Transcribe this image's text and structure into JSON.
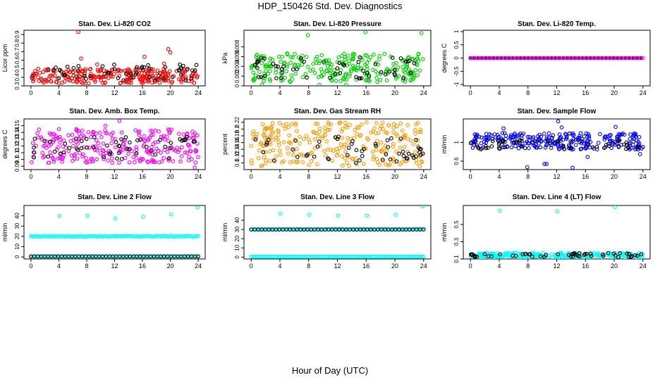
{
  "title": "HDP_150426  Std. Dev. Diagnostics",
  "xlabel": "Hour of Day (UTC)",
  "chart_data": [
    {
      "type": "scatter",
      "title": "Stan. Dev. Li-820 CO2",
      "ylabel": "Licor ppm",
      "xlim": [
        -1,
        25
      ],
      "ylim": [
        0.3,
        0.95
      ],
      "x_ticks": [
        0,
        4,
        8,
        12,
        16,
        20,
        24
      ],
      "y_ticks": [
        0.3,
        0.4,
        0.5,
        0.6,
        0.7,
        0.8,
        0.9
      ],
      "color": "#ff0000",
      "series_data": {
        "band": [
          0.33,
          0.5
        ],
        "outliers": [
          [
            6.8,
            0.93
          ],
          [
            7.2,
            0.62
          ],
          [
            9.5,
            0.55
          ],
          [
            16.3,
            0.64
          ],
          [
            19.1,
            0.56
          ],
          [
            19.7,
            0.73
          ],
          [
            20.0,
            0.69
          ]
        ],
        "black": [
          0.36,
          0.55
        ]
      }
    },
    {
      "type": "scatter",
      "title": "Stan. Dev. Li-820 Pressure",
      "ylabel": "kPa",
      "xlim": [
        -1,
        25
      ],
      "ylim": [
        0.0,
        0.0114
      ],
      "x_ticks": [
        0,
        4,
        8,
        12,
        16,
        20,
        24
      ],
      "y_ticks": [
        0.0,
        0.002,
        0.004,
        0.006,
        0.008
      ],
      "color": "#00cc00",
      "series_data": {
        "band": [
          0.0008,
          0.0068
        ],
        "outliers": [
          [
            7.9,
            0.0104
          ],
          [
            15.9,
            0.011
          ],
          [
            23.7,
            0.0108
          ],
          [
            1.5,
            0.0002
          ],
          [
            9.5,
            0.0002
          ],
          [
            13.2,
            0.0002
          ]
        ],
        "black": [
          0.0015,
          0.006
        ]
      }
    },
    {
      "type": "scatter",
      "title": "Stan. Dev. Li-820 Temp.",
      "ylabel": "degrees C",
      "xlim": [
        -1,
        25
      ],
      "ylim": [
        -1.05,
        1.05
      ],
      "x_ticks": [
        0,
        4,
        8,
        12,
        16,
        20,
        24
      ],
      "y_ticks": [
        -1.0,
        -0.5,
        0.0,
        0.5,
        1.0
      ],
      "color": "#ff00ff",
      "series_data": {
        "constant": 0.0
      }
    },
    {
      "type": "scatter",
      "title": "Stan. Dev. Amb. Box Temp.",
      "ylabel": "degrees C",
      "xlim": [
        -1,
        25
      ],
      "ylim": [
        0.085,
        0.16
      ],
      "x_ticks": [
        0,
        4,
        8,
        12,
        16,
        20,
        24
      ],
      "y_ticks": [
        0.09,
        0.1,
        0.11,
        0.12,
        0.13,
        0.14,
        0.15
      ],
      "color": "#ff00ff",
      "series_data": {
        "band": [
          0.095,
          0.145
        ],
        "outliers": [
          [
            10.7,
            0.15
          ],
          [
            12.7,
            0.157
          ],
          [
            23.5,
            0.088
          ]
        ],
        "black": [
          0.1,
          0.135
        ]
      }
    },
    {
      "type": "scatter",
      "title": "Stan. Dev. Gas Stream RH",
      "ylabel": "percent",
      "xlim": [
        -1,
        25
      ],
      "ylim": [
        0.08,
        0.23
      ],
      "x_ticks": [
        0,
        4,
        8,
        12,
        16,
        20,
        24
      ],
      "y_ticks": [
        0.1,
        0.12,
        0.14,
        0.16,
        0.18,
        0.2,
        0.22
      ],
      "color": "#ff9900",
      "series_data": {
        "band": [
          0.09,
          0.22
        ],
        "black": [
          0.1,
          0.18
        ]
      }
    },
    {
      "type": "scatter",
      "title": "Stan. Dev. Sample Flow",
      "ylabel": "ml/min",
      "xlim": [
        -1,
        25
      ],
      "ylim": [
        0.42,
        1.5
      ],
      "x_ticks": [
        0,
        4,
        8,
        12,
        16,
        20,
        24
      ],
      "y_ticks": [
        0.6,
        1.0
      ],
      "color": "#0000ff",
      "series_data": {
        "band": [
          0.85,
          1.2
        ],
        "outliers": [
          [
            4.6,
            1.3
          ],
          [
            7.9,
            0.47
          ],
          [
            10.3,
            0.54
          ],
          [
            10.6,
            0.54
          ],
          [
            12.2,
            1.45
          ],
          [
            12.7,
            1.32
          ],
          [
            14.2,
            0.46
          ],
          [
            16.3,
            0.69
          ],
          [
            20.2,
            1.33
          ],
          [
            23.6,
            0.75
          ]
        ],
        "black": [
          0.85,
          1.05
        ]
      }
    },
    {
      "type": "scatter",
      "title": "Stan. Dev. Line 2 Flow",
      "ylabel": "ml/min",
      "xlim": [
        -1,
        25
      ],
      "ylim": [
        -2,
        50
      ],
      "x_ticks": [
        0,
        4,
        8,
        12,
        16,
        20,
        24
      ],
      "y_ticks": [
        0,
        10,
        20,
        30,
        40
      ],
      "color": "#00ffff",
      "series_data": {
        "line_main": 20,
        "line_low": 0.5,
        "outliers": [
          [
            4.1,
            40
          ],
          [
            8.1,
            40
          ],
          [
            12.1,
            37.5
          ],
          [
            16.1,
            39
          ],
          [
            20.1,
            41.5
          ],
          [
            23.9,
            48
          ]
        ]
      }
    },
    {
      "type": "scatter",
      "title": "Stan. Dev. Line 3 Flow",
      "ylabel": "ml/min",
      "xlim": [
        -1,
        25
      ],
      "ylim": [
        -2,
        56
      ],
      "x_ticks": [
        0,
        4,
        8,
        12,
        16,
        20,
        24
      ],
      "y_ticks": [
        0,
        10,
        20,
        30,
        40
      ],
      "color": "#00ffff",
      "series_data": {
        "line_main": 30,
        "line_low": 0.5,
        "outliers": [
          [
            4.1,
            47
          ],
          [
            8.1,
            46
          ],
          [
            12.1,
            45
          ],
          [
            16.1,
            45
          ],
          [
            20.1,
            46
          ],
          [
            23.9,
            55
          ]
        ]
      }
    },
    {
      "type": "scatter",
      "title": "Stan. Dev. Line 4 (LT) Flow",
      "ylabel": "ml/min",
      "xlim": [
        -1,
        25
      ],
      "ylim": [
        0.1,
        0.72
      ],
      "x_ticks": [
        0,
        4,
        8,
        12,
        16,
        20,
        24
      ],
      "y_ticks": [
        0.1,
        0.3,
        0.5
      ],
      "color": "#00ffff",
      "series_data": {
        "band": [
          0.11,
          0.17
        ],
        "outliers": [
          [
            4.1,
            0.66
          ],
          [
            12.1,
            0.65
          ],
          [
            20.1,
            0.7
          ]
        ],
        "black": [
          0.12,
          0.17
        ]
      }
    }
  ]
}
